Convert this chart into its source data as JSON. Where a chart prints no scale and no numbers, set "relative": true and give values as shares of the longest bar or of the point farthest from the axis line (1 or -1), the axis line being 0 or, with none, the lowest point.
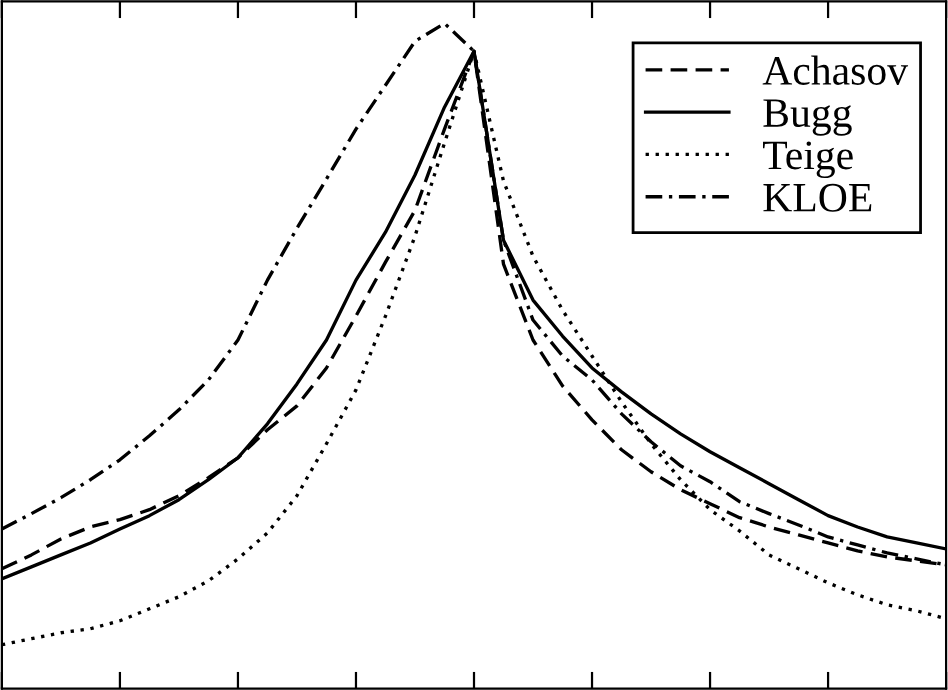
{
  "chart_data": {
    "type": "line",
    "relative": true,
    "legend": "top right",
    "grid": false,
    "marker": "none",
    "categories": [
      null,
      null,
      null,
      null,
      null,
      null,
      null,
      null,
      null,
      null,
      null,
      null,
      null,
      null,
      null,
      null,
      null,
      null,
      null,
      null,
      null,
      null,
      null,
      null,
      null,
      null,
      null,
      null,
      null,
      null,
      null,
      null,
      null
    ],
    "series": [
      {
        "name": "Achasov",
        "color": "#000000",
        "line_style": "dashed",
        "values": [
          0.18,
          0.201,
          0.225,
          0.243,
          0.254,
          0.269,
          0.29,
          0.317,
          0.347,
          0.389,
          0.425,
          0.482,
          0.56,
          0.641,
          0.719,
          0.841,
          0.958,
          0.638,
          0.524,
          0.455,
          0.404,
          0.359,
          0.326,
          0.299,
          0.278,
          0.257,
          0.243,
          0.231,
          0.219,
          0.207,
          0.198,
          0.192,
          0.186
        ]
      },
      {
        "name": "Bugg",
        "color": "#000000",
        "line_style": "solid",
        "values": [
          0.165,
          0.183,
          0.201,
          0.219,
          0.24,
          0.26,
          0.284,
          0.314,
          0.347,
          0.398,
          0.458,
          0.524,
          0.614,
          0.686,
          0.772,
          0.874,
          0.958,
          0.674,
          0.584,
          0.53,
          0.482,
          0.446,
          0.413,
          0.383,
          0.356,
          0.332,
          0.308,
          0.284,
          0.26,
          0.243,
          0.228,
          0.219,
          0.21
        ]
      },
      {
        "name": "Teige",
        "color": "#000000",
        "line_style": "dotted",
        "values": [
          0.066,
          0.075,
          0.084,
          0.09,
          0.102,
          0.12,
          0.138,
          0.162,
          0.195,
          0.234,
          0.29,
          0.368,
          0.449,
          0.56,
          0.68,
          0.82,
          0.958,
          0.763,
          0.65,
          0.569,
          0.5,
          0.431,
          0.368,
          0.314,
          0.269,
          0.237,
          0.201,
          0.18,
          0.159,
          0.141,
          0.126,
          0.117,
          0.105
        ]
      },
      {
        "name": "KLOE",
        "color": "#000000",
        "line_style": "dashdot",
        "values": [
          0.24,
          0.263,
          0.287,
          0.314,
          0.344,
          0.38,
          0.419,
          0.464,
          0.524,
          0.614,
          0.692,
          0.766,
          0.841,
          0.907,
          0.973,
          1.0,
          0.958,
          0.674,
          0.554,
          0.5,
          0.464,
          0.413,
          0.371,
          0.335,
          0.311,
          0.281,
          0.263,
          0.246,
          0.228,
          0.216,
          0.204,
          0.195,
          0.186
        ]
      }
    ]
  }
}
